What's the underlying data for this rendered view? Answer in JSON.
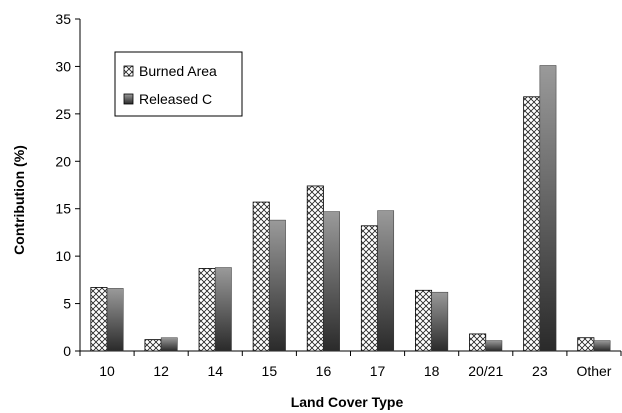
{
  "chart_data": {
    "type": "bar",
    "title": "",
    "xlabel": "Land Cover Type",
    "ylabel": "Contribution (%)",
    "ylim": [
      0,
      35
    ],
    "yticks": [
      0,
      5,
      10,
      15,
      20,
      25,
      30,
      35
    ],
    "categories": [
      "10",
      "12",
      "14",
      "15",
      "16",
      "17",
      "18",
      "20/21",
      "23",
      "Other"
    ],
    "series": [
      {
        "name": "Burned Area",
        "values": [
          6.7,
          1.2,
          8.7,
          15.7,
          17.4,
          13.2,
          6.4,
          1.8,
          26.8,
          1.4
        ],
        "fill": "hatch"
      },
      {
        "name": "Released C",
        "values": [
          6.6,
          1.4,
          8.8,
          13.8,
          14.7,
          14.8,
          6.2,
          1.1,
          30.1,
          1.1
        ],
        "fill": "gradient-gray"
      }
    ],
    "legend": "top-left",
    "grid": false,
    "colors": {
      "bar_dark": "#2a2a2a",
      "bar_light": "#9a9a9a",
      "outline": "#000000"
    }
  }
}
